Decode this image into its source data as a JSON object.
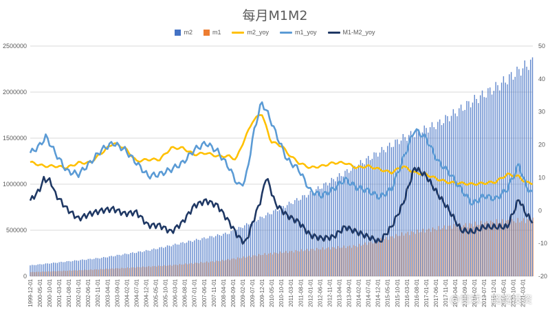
{
  "chart_data": {
    "type": "bar+line",
    "title": "每月M1M2",
    "legend_position": "top",
    "grid": true,
    "legend": [
      {
        "name": "m2",
        "kind": "bar",
        "color": "#4472C4"
      },
      {
        "name": "m1",
        "kind": "bar",
        "color": "#ED7D31"
      },
      {
        "name": "m2_yoy",
        "kind": "line",
        "color": "#FFC000"
      },
      {
        "name": "m1_yoy",
        "kind": "line",
        "color": "#5B9BD5"
      },
      {
        "name": "M1-M2_yoy",
        "kind": "line",
        "color": "#1F3864"
      }
    ],
    "left_axis": {
      "min": 0,
      "max": 2500000,
      "ticks": [
        "0",
        "500000",
        "1000000",
        "1500000",
        "2000000",
        "2500000"
      ]
    },
    "right_axis": {
      "min": -20,
      "max": 50,
      "ticks": [
        "-20",
        "-10",
        "0",
        "10",
        "20",
        "30",
        "40",
        "50"
      ]
    },
    "x_ticks": [
      "1999-12-01",
      "2000-05-01",
      "2000-10-01",
      "2001-03-01",
      "2001-08-01",
      "2002-01-01",
      "2002-06-01",
      "2002-11-01",
      "2003-04-01",
      "2003-09-01",
      "2004-02-01",
      "2004-07-01",
      "2004-12-01",
      "2005-05-01",
      "2005-10-01",
      "2006-03-01",
      "2006-08-01",
      "2007-01-01",
      "2007-06-01",
      "2007-11-01",
      "2008-04-01",
      "2008-09-01",
      "2009-02-01",
      "2009-07-01",
      "2009-12-01",
      "2010-05-01",
      "2010-10-01",
      "2011-03-01",
      "2011-08-01",
      "2012-01-01",
      "2012-06-01",
      "2012-11-01",
      "2013-04-01",
      "2013-09-01",
      "2014-02-01",
      "2014-07-01",
      "2014-12-01",
      "2015-05-01",
      "2015-10-01",
      "2016-03-01",
      "2016-08-01",
      "2017-01-01",
      "2017-06-01",
      "2017-11-01",
      "2018-04-01",
      "2018-09-01",
      "2019-02-01",
      "2019-07-01",
      "2019-12-01",
      "2020-05-01",
      "2020-10-01",
      "2021-03-01"
    ],
    "series_keypoints": {
      "m2": [
        [
          1999.92,
          118000
        ],
        [
          2003.0,
          200000
        ],
        [
          2005.0,
          280000
        ],
        [
          2007.0,
          390000
        ],
        [
          2008.5,
          470000
        ],
        [
          2010.0,
          650000
        ],
        [
          2012.0,
          900000
        ],
        [
          2014.0,
          1200000
        ],
        [
          2016.0,
          1500000
        ],
        [
          2017.5,
          1650000
        ],
        [
          2019.0,
          1900000
        ],
        [
          2020.0,
          2050000
        ],
        [
          2021.5,
          2320000
        ]
      ],
      "m1": [
        [
          1999.92,
          45000
        ],
        [
          2002.0,
          65000
        ],
        [
          2004.0,
          90000
        ],
        [
          2006.0,
          120000
        ],
        [
          2008.0,
          165000
        ],
        [
          2010.0,
          240000
        ],
        [
          2012.0,
          290000
        ],
        [
          2014.0,
          330000
        ],
        [
          2016.0,
          460000
        ],
        [
          2018.0,
          540000
        ],
        [
          2020.0,
          590000
        ],
        [
          2021.5,
          610000
        ]
      ],
      "m2_yoy": [
        [
          1999.92,
          14.7
        ],
        [
          2000.5,
          13.5
        ],
        [
          2001.0,
          13.5
        ],
        [
          2001.5,
          13.0
        ],
        [
          2002.0,
          14.5
        ],
        [
          2002.5,
          14.5
        ],
        [
          2003.0,
          17.5
        ],
        [
          2003.5,
          20.5
        ],
        [
          2004.0,
          19.0
        ],
        [
          2004.5,
          15.0
        ],
        [
          2005.0,
          15.5
        ],
        [
          2005.5,
          15.5
        ],
        [
          2006.0,
          19.0
        ],
        [
          2006.5,
          19.0
        ],
        [
          2007.0,
          17.0
        ],
        [
          2007.5,
          17.5
        ],
        [
          2008.0,
          16.5
        ],
        [
          2008.5,
          16.5
        ],
        [
          2008.8,
          15.5
        ],
        [
          2009.0,
          19.0
        ],
        [
          2009.5,
          27.0
        ],
        [
          2009.9,
          29.7
        ],
        [
          2010.3,
          21.0
        ],
        [
          2010.8,
          19.5
        ],
        [
          2011.0,
          17.5
        ],
        [
          2011.5,
          14.5
        ],
        [
          2012.0,
          13.0
        ],
        [
          2012.5,
          13.5
        ],
        [
          2013.0,
          14.5
        ],
        [
          2013.5,
          14.5
        ],
        [
          2014.0,
          13.0
        ],
        [
          2014.5,
          13.5
        ],
        [
          2015.0,
          12.5
        ],
        [
          2015.5,
          11.5
        ],
        [
          2016.0,
          13.5
        ],
        [
          2016.5,
          11.5
        ],
        [
          2017.0,
          11.0
        ],
        [
          2017.5,
          9.5
        ],
        [
          2018.0,
          8.5
        ],
        [
          2018.5,
          8.3
        ],
        [
          2019.0,
          8.0
        ],
        [
          2019.5,
          8.3
        ],
        [
          2020.0,
          8.7
        ],
        [
          2020.5,
          11.0
        ],
        [
          2021.0,
          10.3
        ],
        [
          2021.3,
          8.5
        ],
        [
          2021.6,
          8.3
        ]
      ],
      "m1_yoy": [
        [
          1999.92,
          17.5
        ],
        [
          2000.3,
          19.5
        ],
        [
          2000.6,
          22.5
        ],
        [
          2001.0,
          17.5
        ],
        [
          2001.5,
          12.0
        ],
        [
          2002.0,
          11.0
        ],
        [
          2002.5,
          14.5
        ],
        [
          2003.0,
          18.5
        ],
        [
          2003.5,
          20.5
        ],
        [
          2004.0,
          18.5
        ],
        [
          2004.5,
          14.5
        ],
        [
          2005.0,
          10.5
        ],
        [
          2005.5,
          11.0
        ],
        [
          2006.0,
          12.5
        ],
        [
          2006.5,
          14.5
        ],
        [
          2007.0,
          18.5
        ],
        [
          2007.5,
          20.5
        ],
        [
          2008.0,
          18.0
        ],
        [
          2008.5,
          13.0
        ],
        [
          2008.9,
          7.5
        ],
        [
          2009.2,
          9.0
        ],
        [
          2009.6,
          25.0
        ],
        [
          2009.9,
          33.0
        ],
        [
          2010.2,
          29.0
        ],
        [
          2010.6,
          22.0
        ],
        [
          2011.0,
          15.5
        ],
        [
          2011.5,
          12.5
        ],
        [
          2012.0,
          6.0
        ],
        [
          2012.5,
          4.5
        ],
        [
          2013.0,
          6.5
        ],
        [
          2013.5,
          9.5
        ],
        [
          2014.0,
          7.0
        ],
        [
          2014.5,
          6.0
        ],
        [
          2015.0,
          4.0
        ],
        [
          2015.5,
          6.5
        ],
        [
          2016.0,
          15.5
        ],
        [
          2016.5,
          24.6
        ],
        [
          2017.0,
          22.0
        ],
        [
          2017.5,
          15.0
        ],
        [
          2018.0,
          11.5
        ],
        [
          2018.5,
          6.5
        ],
        [
          2019.0,
          2.0
        ],
        [
          2019.5,
          4.5
        ],
        [
          2020.0,
          3.5
        ],
        [
          2020.5,
          6.5
        ],
        [
          2021.0,
          14.0
        ],
        [
          2021.3,
          7.5
        ],
        [
          2021.6,
          4.9
        ]
      ],
      "M1-M2_yoy": [
        [
          1999.92,
          3.0
        ],
        [
          2000.3,
          6.0
        ],
        [
          2000.5,
          9.5
        ],
        [
          2000.8,
          9.0
        ],
        [
          2001.0,
          5.0
        ],
        [
          2001.5,
          0.5
        ],
        [
          2002.0,
          -2.5
        ],
        [
          2002.5,
          -1.0
        ],
        [
          2003.0,
          0.0
        ],
        [
          2003.5,
          0.5
        ],
        [
          2004.0,
          -1.0
        ],
        [
          2004.5,
          -0.5
        ],
        [
          2005.0,
          -4.5
        ],
        [
          2005.5,
          -4.5
        ],
        [
          2006.0,
          -6.5
        ],
        [
          2006.5,
          -3.5
        ],
        [
          2007.0,
          1.5
        ],
        [
          2007.5,
          3.0
        ],
        [
          2008.0,
          1.5
        ],
        [
          2008.5,
          -3.5
        ],
        [
          2008.9,
          -8.0
        ],
        [
          2009.2,
          -10.0
        ],
        [
          2009.6,
          -2.0
        ],
        [
          2009.9,
          4.0
        ],
        [
          2010.1,
          10.5
        ],
        [
          2010.5,
          2.0
        ],
        [
          2011.0,
          -1.5
        ],
        [
          2011.5,
          -3.5
        ],
        [
          2012.0,
          -7.5
        ],
        [
          2012.5,
          -8.5
        ],
        [
          2013.0,
          -8.0
        ],
        [
          2013.5,
          -5.0
        ],
        [
          2014.0,
          -6.5
        ],
        [
          2014.5,
          -8.0
        ],
        [
          2015.0,
          -9.5
        ],
        [
          2015.5,
          -5.0
        ],
        [
          2016.0,
          2.0
        ],
        [
          2016.5,
          13.1
        ],
        [
          2017.0,
          10.5
        ],
        [
          2017.5,
          5.0
        ],
        [
          2018.0,
          0.0
        ],
        [
          2018.5,
          -6.0
        ],
        [
          2019.0,
          -6.5
        ],
        [
          2019.5,
          -5.0
        ],
        [
          2020.0,
          -5.0
        ],
        [
          2020.5,
          -5.0
        ],
        [
          2021.0,
          3.5
        ],
        [
          2021.3,
          -1.0
        ],
        [
          2021.6,
          -3.4
        ]
      ]
    }
  },
  "watermark": "@雪球：璐璐投资"
}
